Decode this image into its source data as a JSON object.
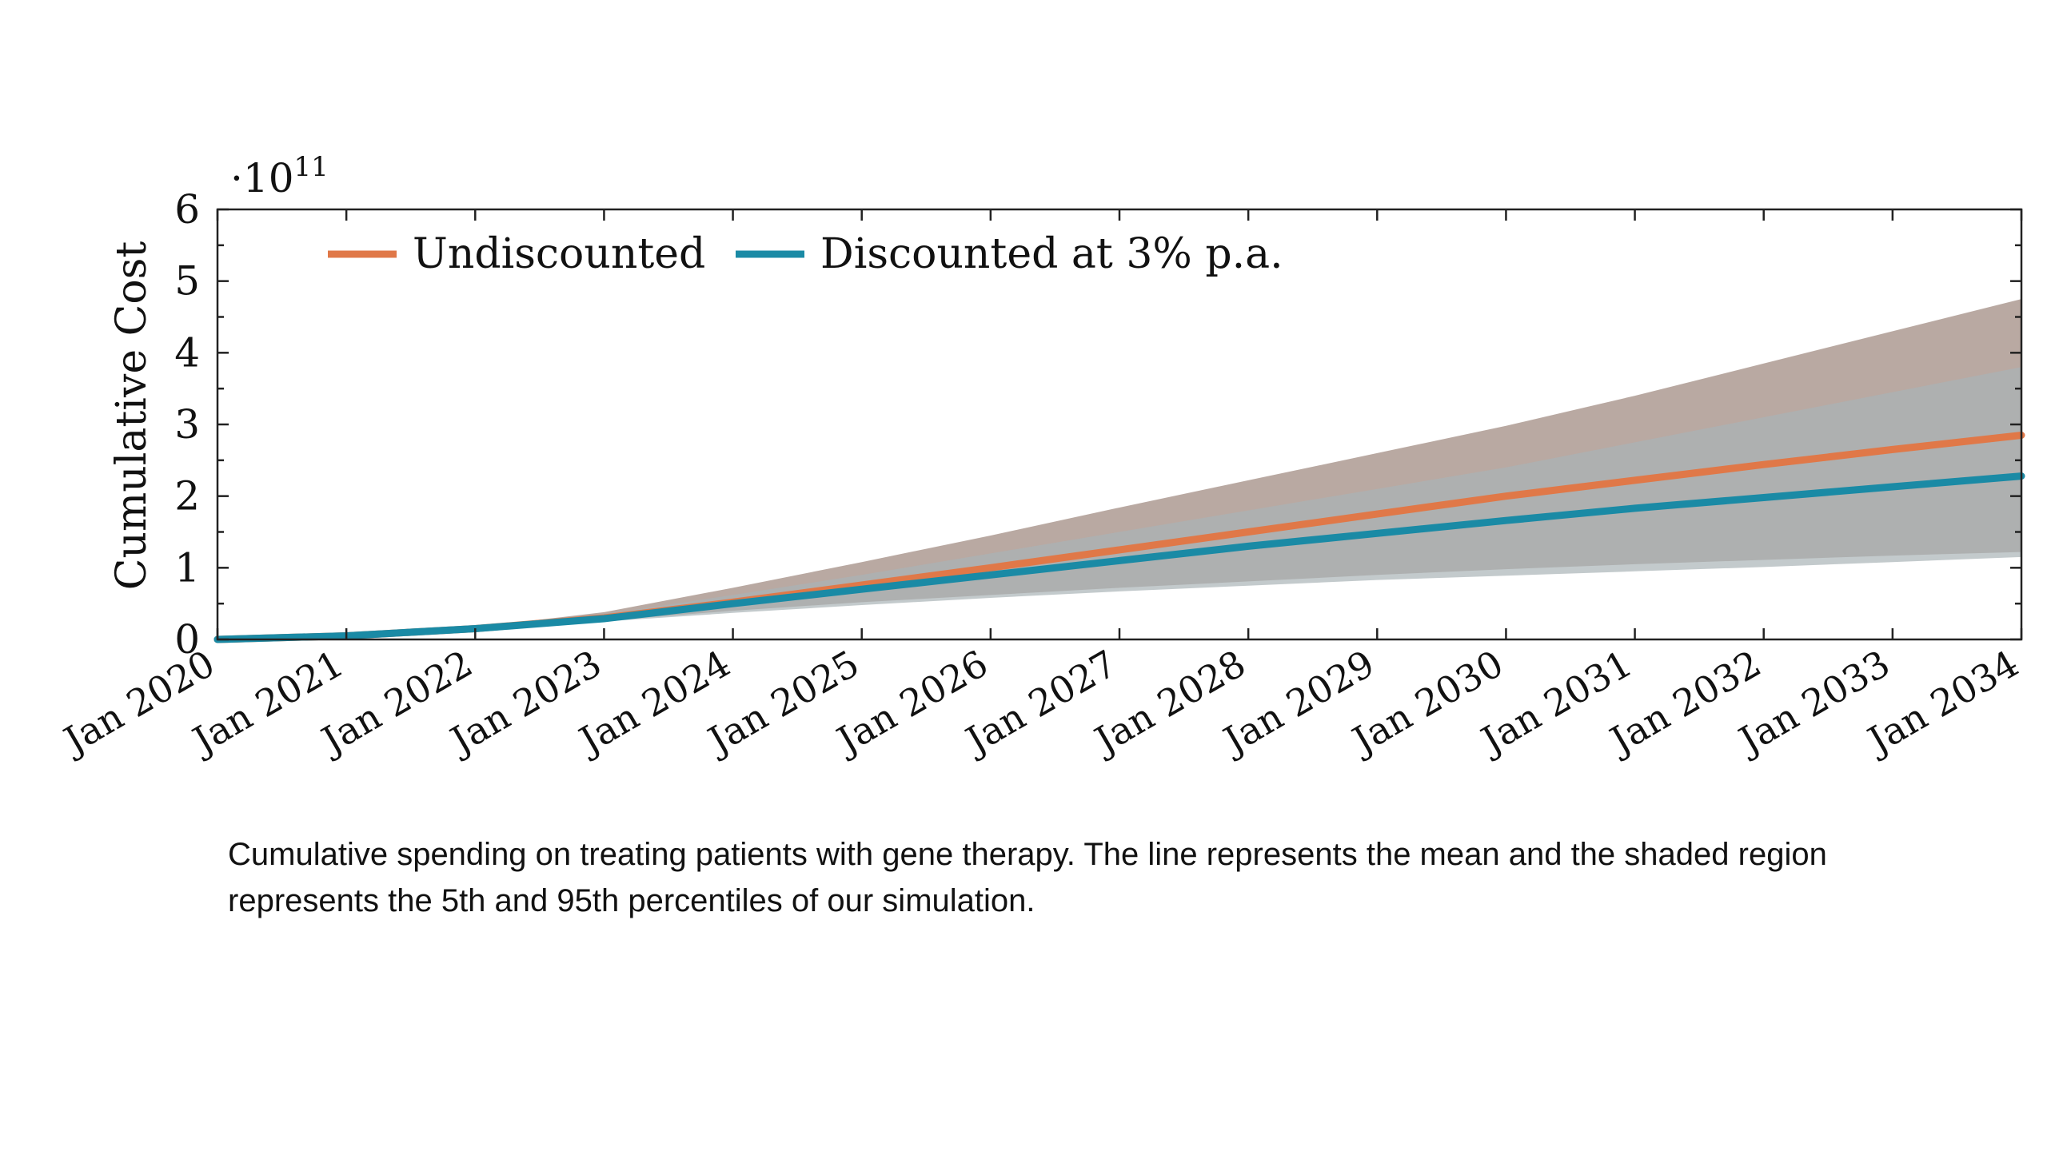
{
  "chart_data": {
    "type": "line",
    "title": "",
    "xlabel": "",
    "ylabel": "Cumulative Cost",
    "y_multiplier": "·10",
    "y_multiplier_exp": "11",
    "ylim": [
      0,
      6
    ],
    "y_ticks": [
      "0",
      "1",
      "2",
      "3",
      "4",
      "5",
      "6"
    ],
    "x_ticks": [
      "Jan 2020",
      "Jan 2021",
      "Jan 2022",
      "Jan 2023",
      "Jan 2024",
      "Jan 2025",
      "Jan 2026",
      "Jan 2027",
      "Jan 2028",
      "Jan 2029",
      "Jan 2030",
      "Jan 2031",
      "Jan 2032",
      "Jan 2033",
      "Jan 2034"
    ],
    "xlim": [
      "Jan 2020",
      "Jan 2034"
    ],
    "grid": false,
    "legend_position": "top-left",
    "series": [
      {
        "name": "Undiscounted",
        "color": "#e07848",
        "band_color": "#b5a49d",
        "x": [
          "Jan 2020",
          "Jan 2021",
          "Jan 2022",
          "Jan 2023",
          "Jan 2024",
          "Jan 2025",
          "Jan 2026",
          "Jan 2027",
          "Jan 2028",
          "Jan 2029",
          "Jan 2030",
          "Jan 2031",
          "Jan 2032",
          "Jan 2033",
          "Jan 2034"
        ],
        "mean": [
          0,
          0.05,
          0.15,
          0.3,
          0.52,
          0.76,
          1.0,
          1.25,
          1.5,
          1.75,
          2.0,
          2.22,
          2.44,
          2.65,
          2.85
        ],
        "p5": [
          0,
          0.04,
          0.13,
          0.26,
          0.4,
          0.52,
          0.62,
          0.72,
          0.81,
          0.9,
          0.98,
          1.05,
          1.11,
          1.17,
          1.22
        ],
        "p95": [
          0,
          0.06,
          0.17,
          0.38,
          0.72,
          1.08,
          1.45,
          1.84,
          2.22,
          2.6,
          2.98,
          3.4,
          3.85,
          4.3,
          4.75
        ]
      },
      {
        "name": "Discounted at 3% p.a.",
        "color": "#1a8aa5",
        "band_color": "#a9b4b6",
        "x": [
          "Jan 2020",
          "Jan 2021",
          "Jan 2022",
          "Jan 2023",
          "Jan 2024",
          "Jan 2025",
          "Jan 2026",
          "Jan 2027",
          "Jan 2028",
          "Jan 2029",
          "Jan 2030",
          "Jan 2031",
          "Jan 2032",
          "Jan 2033",
          "Jan 2034"
        ],
        "mean": [
          0,
          0.05,
          0.15,
          0.29,
          0.5,
          0.7,
          0.9,
          1.1,
          1.3,
          1.48,
          1.66,
          1.83,
          1.98,
          2.13,
          2.28
        ],
        "p5": [
          0,
          0.04,
          0.12,
          0.25,
          0.37,
          0.48,
          0.58,
          0.67,
          0.75,
          0.83,
          0.89,
          0.95,
          1.01,
          1.08,
          1.15
        ],
        "p95": [
          0,
          0.06,
          0.16,
          0.35,
          0.62,
          0.9,
          1.2,
          1.5,
          1.8,
          2.1,
          2.4,
          2.75,
          3.1,
          3.45,
          3.8
        ]
      }
    ]
  },
  "caption": {
    "text": "Cumulative spending on treating patients with gene therapy. The line represents the mean and the shaded region represents the 5th and 95th percentiles of our simulation."
  }
}
